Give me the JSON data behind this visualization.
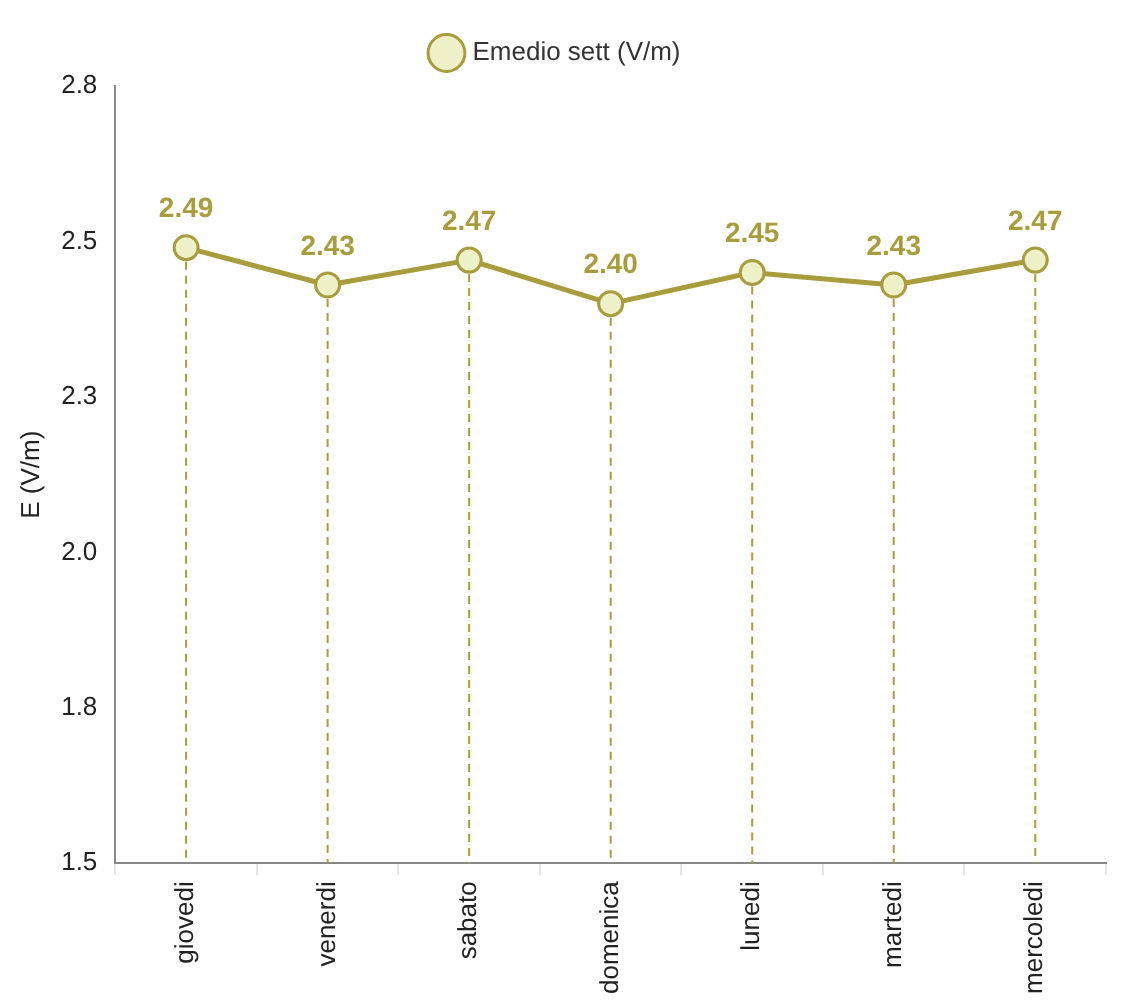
{
  "chart_data": {
    "type": "line",
    "ylabel": "E (V/m)",
    "categories": [
      "giovedi",
      "venerdi",
      "sabato",
      "domenica",
      "lunedi",
      "martedi",
      "mercoledi"
    ],
    "series": [
      {
        "name": "Emedio sett (V/m)",
        "color": "#a89c3c",
        "values": [
          2.49,
          2.43,
          2.47,
          2.4,
          2.45,
          2.43,
          2.47
        ],
        "value_labels": [
          "2.49",
          "2.43",
          "2.47",
          "2.40",
          "2.45",
          "2.43",
          "2.47"
        ]
      }
    ],
    "ylim": [
      1.5,
      2.75
    ],
    "yticks": [
      {
        "value": 1.5,
        "label": "1.5"
      },
      {
        "value": 1.75,
        "label": "1.8"
      },
      {
        "value": 2.0,
        "label": "2.0"
      },
      {
        "value": 2.25,
        "label": "2.3"
      },
      {
        "value": 2.5,
        "label": "2.5"
      },
      {
        "value": 2.75,
        "label": "2.8"
      }
    ],
    "grid": "x",
    "legend": "top",
    "marker": "circle",
    "line_style": "solid"
  }
}
